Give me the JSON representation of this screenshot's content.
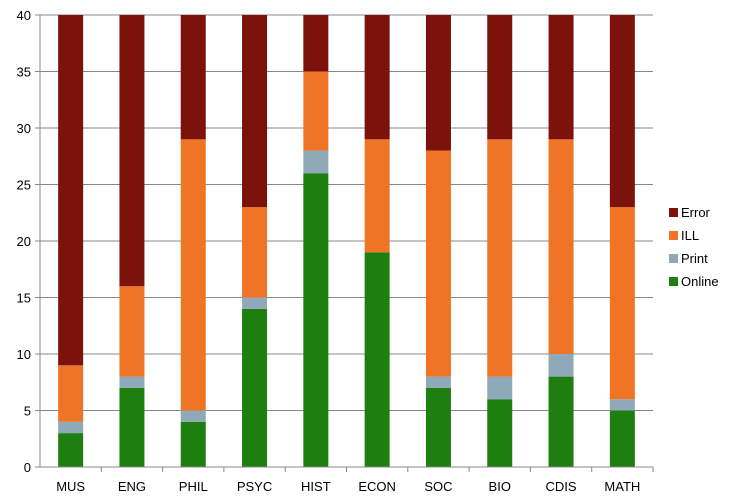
{
  "chart_data": {
    "type": "bar",
    "stacked": true,
    "categories": [
      "MUS",
      "ENG",
      "PHIL",
      "PSYC",
      "HIST",
      "ECON",
      "SOC",
      "BIO",
      "CDIS",
      "MATH"
    ],
    "series": [
      {
        "name": "Online",
        "color": "#1e7e0f",
        "values": [
          3,
          7,
          4,
          14,
          26,
          19,
          7,
          6,
          8,
          5
        ]
      },
      {
        "name": "Print",
        "color": "#8fa9b8",
        "values": [
          1,
          1,
          1,
          1,
          2,
          0,
          1,
          2,
          2,
          1
        ]
      },
      {
        "name": "ILL",
        "color": "#f07425",
        "values": [
          5,
          8,
          24,
          8,
          7,
          10,
          20,
          21,
          19,
          17
        ]
      },
      {
        "name": "Error",
        "color": "#7b120c",
        "values": [
          31,
          24,
          11,
          17,
          5,
          11,
          12,
          11,
          11,
          17
        ]
      }
    ],
    "title": "",
    "xlabel": "",
    "ylabel": "",
    "ylim": [
      0,
      40
    ],
    "yticks": [
      0,
      5,
      10,
      15,
      20,
      25,
      30,
      35,
      40
    ],
    "grid": true,
    "legend": {
      "placement": "right",
      "order": [
        "Error",
        "ILL",
        "Print",
        "Online"
      ]
    }
  }
}
